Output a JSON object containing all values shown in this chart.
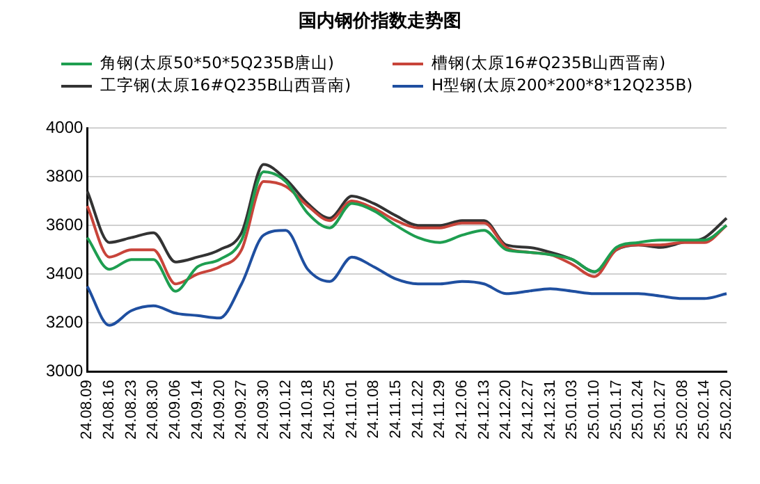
{
  "chart_data": {
    "type": "line",
    "title": "国内钢价指数走势图",
    "categories": [
      "24.08.09",
      "24.08.16",
      "24.08.23",
      "24.08.30",
      "24.09.06",
      "24.09.14",
      "24.09.20",
      "24.09.27",
      "24.09.30",
      "24.10.12",
      "24.10.18",
      "24.10.25",
      "24.11.01",
      "24.11.08",
      "24.11.15",
      "24.11.22",
      "24.11.29",
      "24.12.06",
      "24.12.13",
      "24.12.20",
      "24.12.27",
      "24.12.31",
      "25.01.03",
      "25.01.10",
      "25.01.17",
      "25.01.24",
      "25.01.27",
      "25.02.08",
      "25.02.14",
      "25.02.20"
    ],
    "series": [
      {
        "name": "角钢(太原50*50*5Q235B唐山)",
        "color": "#1e9e50",
        "values": [
          3550,
          3420,
          3460,
          3460,
          3330,
          3430,
          3460,
          3540,
          3820,
          3780,
          3650,
          3590,
          3690,
          3660,
          3600,
          3550,
          3530,
          3560,
          3580,
          3500,
          3490,
          3480,
          3460,
          3410,
          3510,
          3530,
          3540,
          3540,
          3540,
          3600
        ]
      },
      {
        "name": "槽钢(太原16#Q235B山西晋南)",
        "color": "#c8443a",
        "values": [
          3680,
          3470,
          3500,
          3500,
          3360,
          3400,
          3430,
          3500,
          3780,
          3760,
          3680,
          3620,
          3700,
          3670,
          3620,
          3590,
          3590,
          3610,
          3610,
          3510,
          3490,
          3480,
          3440,
          3390,
          3500,
          3520,
          3520,
          3530,
          3530,
          3600
        ]
      },
      {
        "name": "工字钢(太原16#Q235B山西晋南)",
        "color": "#333333",
        "values": [
          3740,
          3530,
          3550,
          3570,
          3450,
          3470,
          3500,
          3570,
          3850,
          3790,
          3690,
          3630,
          3720,
          3690,
          3640,
          3600,
          3600,
          3620,
          3620,
          3520,
          3510,
          3490,
          3460,
          3410,
          3500,
          3520,
          3510,
          3530,
          3550,
          3630
        ]
      },
      {
        "name": "H型钢(太原200*200*8*12Q235B)",
        "color": "#1f4fa0",
        "values": [
          3350,
          3190,
          3250,
          3270,
          3240,
          3230,
          3220,
          3360,
          3560,
          3580,
          3420,
          3370,
          3470,
          3430,
          3380,
          3360,
          3360,
          3370,
          3360,
          3320,
          3330,
          3340,
          3330,
          3320,
          3320,
          3320,
          3310,
          3300,
          3300,
          3320
        ]
      }
    ],
    "ylim": [
      3000,
      4000
    ],
    "yticks": [
      3000,
      3200,
      3400,
      3600,
      3800,
      4000
    ],
    "grid": "y",
    "legend": "top",
    "marker": "none",
    "line_style": "solid"
  }
}
